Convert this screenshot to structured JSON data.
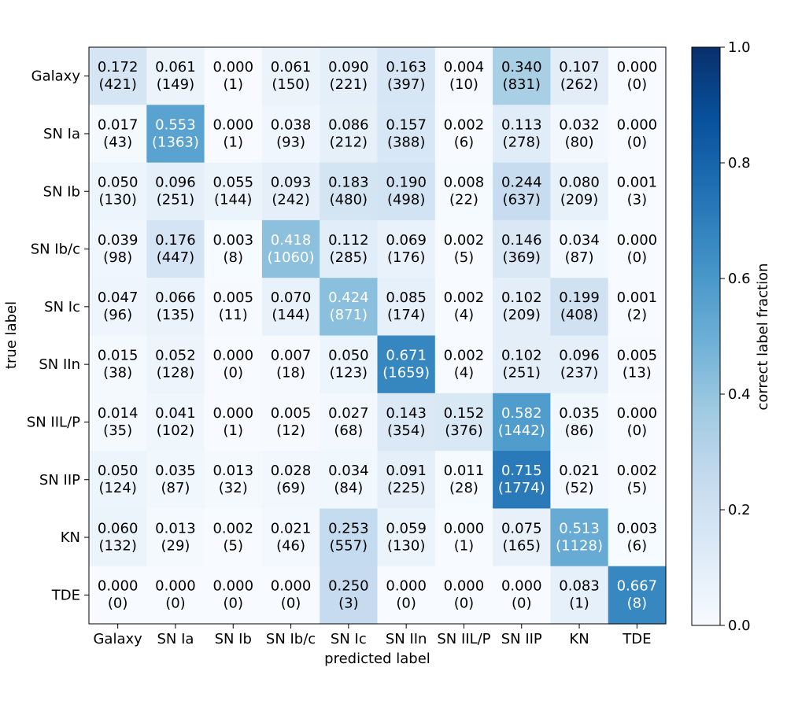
{
  "chart_data": {
    "type": "heatmap",
    "title": "",
    "xlabel": "predicted label",
    "ylabel": "true label",
    "colorbar_label": "correct label fraction",
    "colorbar_range": [
      0.0,
      1.0
    ],
    "colorbar_ticks": [
      "0.0",
      "0.2",
      "0.4",
      "0.6",
      "0.8",
      "1.0"
    ],
    "colormap": [
      "#f7fbff",
      "#deebf7",
      "#c6dbef",
      "#9ecae1",
      "#6baed6",
      "#4292c6",
      "#2171b5",
      "#08519c",
      "#08306b"
    ],
    "x_categories": [
      "Galaxy",
      "SN Ia",
      "SN Ib",
      "SN Ib/c",
      "SN Ic",
      "SN IIn",
      "SN IIL/P",
      "SN IIP",
      "KN",
      "TDE"
    ],
    "y_categories": [
      "Galaxy",
      "SN Ia",
      "SN Ib",
      "SN Ib/c",
      "SN Ic",
      "SN IIn",
      "SN IIL/P",
      "SN IIP",
      "KN",
      "TDE"
    ],
    "fractions": [
      [
        "0.172",
        "0.061",
        "0.000",
        "0.061",
        "0.090",
        "0.163",
        "0.004",
        "0.340",
        "0.107",
        "0.000"
      ],
      [
        "0.017",
        "0.553",
        "0.000",
        "0.038",
        "0.086",
        "0.157",
        "0.002",
        "0.113",
        "0.032",
        "0.000"
      ],
      [
        "0.050",
        "0.096",
        "0.055",
        "0.093",
        "0.183",
        "0.190",
        "0.008",
        "0.244",
        "0.080",
        "0.001"
      ],
      [
        "0.039",
        "0.176",
        "0.003",
        "0.418",
        "0.112",
        "0.069",
        "0.002",
        "0.146",
        "0.034",
        "0.000"
      ],
      [
        "0.047",
        "0.066",
        "0.005",
        "0.070",
        "0.424",
        "0.085",
        "0.002",
        "0.102",
        "0.199",
        "0.001"
      ],
      [
        "0.015",
        "0.052",
        "0.000",
        "0.007",
        "0.050",
        "0.671",
        "0.002",
        "0.102",
        "0.096",
        "0.005"
      ],
      [
        "0.014",
        "0.041",
        "0.000",
        "0.005",
        "0.027",
        "0.143",
        "0.152",
        "0.582",
        "0.035",
        "0.000"
      ],
      [
        "0.050",
        "0.035",
        "0.013",
        "0.028",
        "0.034",
        "0.091",
        "0.011",
        "0.715",
        "0.021",
        "0.002"
      ],
      [
        "0.060",
        "0.013",
        "0.002",
        "0.021",
        "0.253",
        "0.059",
        "0.000",
        "0.075",
        "0.513",
        "0.003"
      ],
      [
        "0.000",
        "0.000",
        "0.000",
        "0.000",
        "0.250",
        "0.000",
        "0.000",
        "0.000",
        "0.083",
        "0.667"
      ]
    ],
    "counts": [
      [
        "(421)",
        "(149)",
        "(1)",
        "(150)",
        "(221)",
        "(397)",
        "(10)",
        "(831)",
        "(262)",
        "(0)"
      ],
      [
        "(43)",
        "(1363)",
        "(1)",
        "(93)",
        "(212)",
        "(388)",
        "(6)",
        "(278)",
        "(80)",
        "(0)"
      ],
      [
        "(130)",
        "(251)",
        "(144)",
        "(242)",
        "(480)",
        "(498)",
        "(22)",
        "(637)",
        "(209)",
        "(3)"
      ],
      [
        "(98)",
        "(447)",
        "(8)",
        "(1060)",
        "(285)",
        "(176)",
        "(5)",
        "(369)",
        "(87)",
        "(0)"
      ],
      [
        "(96)",
        "(135)",
        "(11)",
        "(144)",
        "(871)",
        "(174)",
        "(4)",
        "(209)",
        "(408)",
        "(2)"
      ],
      [
        "(38)",
        "(128)",
        "(0)",
        "(18)",
        "(123)",
        "(1659)",
        "(4)",
        "(251)",
        "(237)",
        "(13)"
      ],
      [
        "(35)",
        "(102)",
        "(1)",
        "(12)",
        "(68)",
        "(354)",
        "(376)",
        "(1442)",
        "(86)",
        "(0)"
      ],
      [
        "(124)",
        "(87)",
        "(32)",
        "(69)",
        "(84)",
        "(225)",
        "(28)",
        "(1774)",
        "(52)",
        "(5)"
      ],
      [
        "(132)",
        "(29)",
        "(5)",
        "(46)",
        "(557)",
        "(130)",
        "(1)",
        "(165)",
        "(1128)",
        "(6)"
      ],
      [
        "(0)",
        "(0)",
        "(0)",
        "(0)",
        "(3)",
        "(0)",
        "(0)",
        "(0)",
        "(1)",
        "(8)"
      ]
    ]
  }
}
